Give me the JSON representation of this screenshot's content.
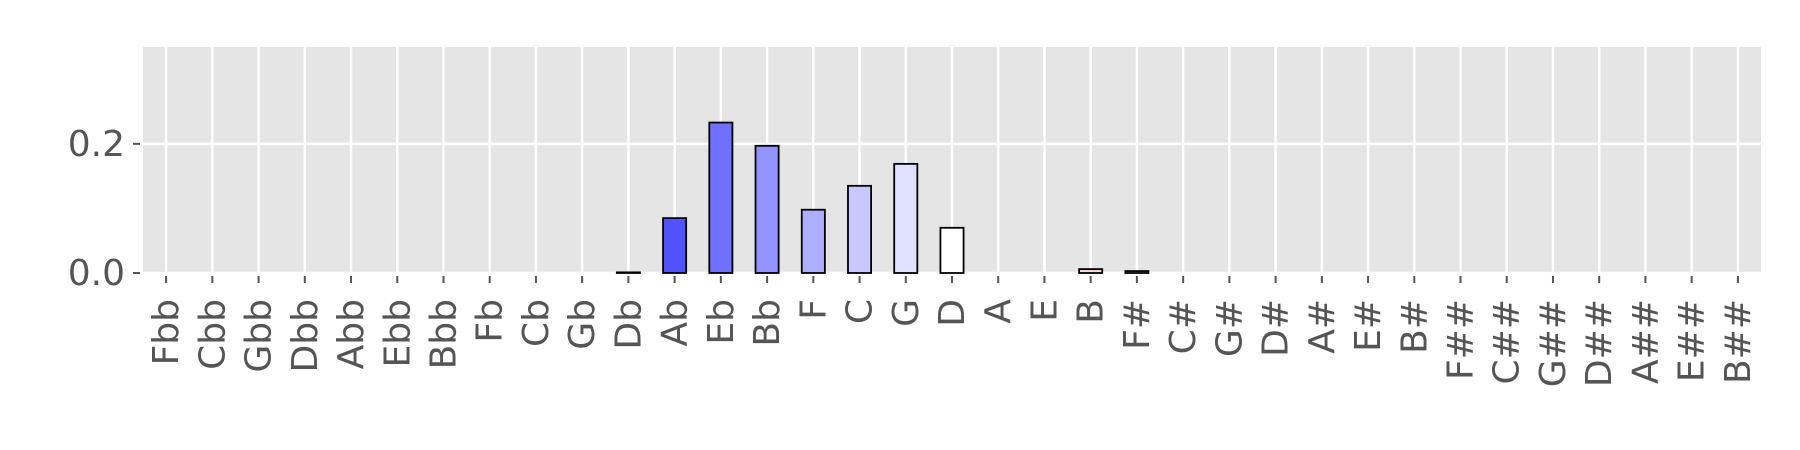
{
  "chart_data": {
    "type": "bar",
    "title": "",
    "xlabel": "",
    "ylabel": "",
    "ylim": [
      0,
      0.35
    ],
    "yticks": [
      0.0,
      0.2
    ],
    "ytick_labels": [
      "0.0",
      "0.2"
    ],
    "grid": true,
    "background": "#e5e5e5",
    "grid_color": "#ffffff",
    "edge_color": "#000000",
    "categories": [
      "Fbb",
      "Cbb",
      "Gbb",
      "Dbb",
      "Abb",
      "Ebb",
      "Bbb",
      "Fb",
      "Cb",
      "Gb",
      "Db",
      "Ab",
      "Eb",
      "Bb",
      "F",
      "C",
      "G",
      "D",
      "A",
      "E",
      "B",
      "F#",
      "C#",
      "G#",
      "D#",
      "A#",
      "E#",
      "B#",
      "F##",
      "C##",
      "G##",
      "D##",
      "A##",
      "E##",
      "B##"
    ],
    "values": [
      0,
      0,
      0,
      0,
      0,
      0,
      0,
      0,
      0,
      0,
      0.001,
      0.085,
      0.233,
      0.197,
      0.098,
      0.135,
      0.169,
      0.07,
      0,
      0,
      0.006,
      0.003,
      0,
      0,
      0,
      0,
      0,
      0,
      0,
      0,
      0,
      0,
      0,
      0,
      0
    ],
    "bar_colors": [
      "#ffffff",
      "#ffffff",
      "#ffffff",
      "#ffffff",
      "#ffffff",
      "#ffffff",
      "#ffffff",
      "#ffffff",
      "#ffffff",
      "#ffffff",
      "#f0f0ff",
      "#5252fa",
      "#7070ff",
      "#9393ff",
      "#aeaeff",
      "#c8c8ff",
      "#e0e0ff",
      "#ffffff",
      "#ffffff",
      "#ffffff",
      "#ffd8d8",
      "#fff0f0",
      "#ffffff",
      "#ffffff",
      "#ffffff",
      "#ffffff",
      "#ffffff",
      "#ffffff",
      "#ffffff",
      "#ffffff",
      "#ffffff",
      "#ffffff",
      "#ffffff",
      "#ffffff",
      "#ffffff"
    ]
  }
}
